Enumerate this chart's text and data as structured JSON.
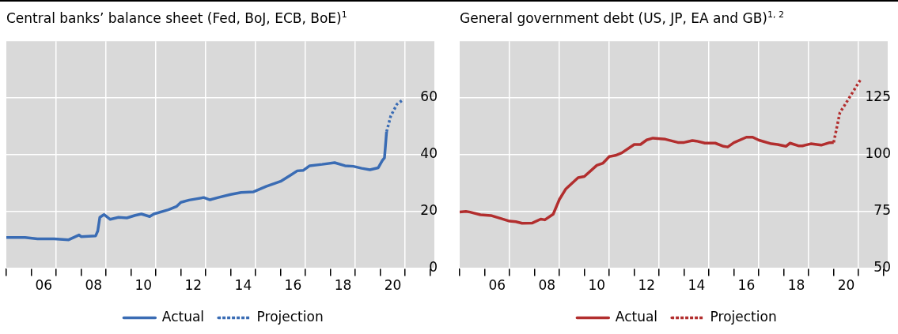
{
  "chart_data": [
    {
      "type": "line",
      "title": "Central banks’ balance sheet (Fed, BoJ, ECB, BoE)$^{1}$",
      "series": [
        {
          "name": "Actual",
          "color": "#3a6cb4",
          "line_style": "solid",
          "x": [
            "2005-01",
            "2005-10",
            "2006-04",
            "2006-12",
            "2007-07",
            "2007-12",
            "2008-01",
            "2008-08",
            "2008-09",
            "2008-10",
            "2008-12",
            "2009-03",
            "2009-07",
            "2009-11",
            "2010-03",
            "2010-06",
            "2010-10",
            "2010-12",
            "2011-07",
            "2011-11",
            "2012-01",
            "2012-05",
            "2012-12",
            "2013-03",
            "2013-07",
            "2014-01",
            "2014-06",
            "2014-12",
            "2015-06",
            "2016-01",
            "2016-06",
            "2016-09",
            "2016-12",
            "2017-03",
            "2017-09",
            "2018-03",
            "2018-08",
            "2018-12",
            "2019-04",
            "2019-08",
            "2019-12",
            "2020-02",
            "2020-03",
            "2020-04"
          ],
          "values": [
            10.8,
            10.8,
            10.3,
            10.3,
            10.0,
            11.7,
            11.1,
            11.4,
            13.1,
            17.9,
            18.9,
            17.2,
            17.9,
            17.7,
            18.6,
            19.1,
            18.2,
            19.1,
            20.6,
            21.8,
            23.2,
            24.0,
            24.9,
            24.1,
            24.9,
            26.0,
            26.7,
            26.9,
            28.8,
            30.6,
            32.9,
            34.3,
            34.5,
            36.1,
            36.6,
            37.2,
            36.1,
            35.9,
            35.2,
            34.7,
            35.4,
            38.0,
            38.9,
            48.1
          ]
        },
        {
          "name": "Projection",
          "color": "#3a6cb4",
          "line_style": "dotted",
          "x": [
            "2020-04",
            "2020-06",
            "2020-09",
            "2020-12"
          ],
          "values": [
            48.1,
            53.6,
            57.8,
            59.4
          ]
        }
      ],
      "xlim": [
        "2005-01",
        "2022-03"
      ],
      "xticks": [
        {
          "value": "2005-01-01",
          "label": null
        },
        {
          "value": "2006-01-01",
          "label": null
        },
        {
          "value": "2006-07-01",
          "label": "06"
        },
        {
          "value": "2007-01-01",
          "label": null
        },
        {
          "value": "2008-01-01",
          "label": null
        },
        {
          "value": "2008-07-01",
          "label": "08"
        },
        {
          "value": "2009-01-01",
          "label": null
        },
        {
          "value": "2010-01-01",
          "label": null
        },
        {
          "value": "2010-07-01",
          "label": "10"
        },
        {
          "value": "2011-01-01",
          "label": null
        },
        {
          "value": "2012-01-01",
          "label": null
        },
        {
          "value": "2012-07-01",
          "label": "12"
        },
        {
          "value": "2013-01-01",
          "label": null
        },
        {
          "value": "2014-01-01",
          "label": null
        },
        {
          "value": "2014-07-01",
          "label": "14"
        },
        {
          "value": "2015-01-01",
          "label": null
        },
        {
          "value": "2016-01-01",
          "label": null
        },
        {
          "value": "2016-07-01",
          "label": "16"
        },
        {
          "value": "2017-01-01",
          "label": null
        },
        {
          "value": "2018-01-01",
          "label": null
        },
        {
          "value": "2018-07-01",
          "label": "18"
        },
        {
          "value": "2019-01-01",
          "label": null
        },
        {
          "value": "2020-01-01",
          "label": null
        },
        {
          "value": "2020-07-01",
          "label": "20"
        },
        {
          "value": "2021-01-01",
          "label": null
        },
        {
          "value": "2022-01-01",
          "label": null
        }
      ],
      "ylim": [
        0,
        80
      ],
      "yticks": [
        0,
        20,
        40,
        60
      ],
      "grid": true,
      "legend": "bottom",
      "marker": "none"
    },
    {
      "type": "line",
      "title": "General government debt (US, JP, EA and GB)$^{1, 2}$",
      "series": [
        {
          "name": "Actual",
          "color": "#b22e2e",
          "line_style": "solid",
          "x": [
            "2005-01",
            "2005-04",
            "2005-06",
            "2005-11",
            "2006-04",
            "2006-09",
            "2007-01",
            "2007-04",
            "2007-07",
            "2007-12",
            "2008-04",
            "2008-06",
            "2008-10",
            "2009-01",
            "2009-04",
            "2009-10",
            "2010-01",
            "2010-07",
            "2010-10",
            "2011-01",
            "2011-04",
            "2011-07",
            "2012-01",
            "2012-04",
            "2012-07",
            "2012-10",
            "2013-04",
            "2013-10",
            "2014-01",
            "2014-05",
            "2014-07",
            "2014-11",
            "2015-04",
            "2015-08",
            "2015-10",
            "2016-01",
            "2016-07",
            "2016-10",
            "2017-01",
            "2017-07",
            "2017-10",
            "2018-02",
            "2018-04",
            "2018-08",
            "2018-10",
            "2019-02",
            "2019-07",
            "2019-11",
            "2020-01"
          ],
          "values": [
            74.7,
            75.0,
            74.7,
            73.5,
            73.2,
            71.8,
            70.7,
            70.5,
            69.8,
            69.9,
            71.6,
            71.3,
            73.8,
            80.3,
            84.8,
            89.9,
            90.4,
            95.3,
            96.3,
            99.2,
            99.7,
            100.8,
            104.5,
            104.5,
            106.5,
            107.3,
            106.8,
            105.4,
            105.4,
            106.2,
            106.0,
            105.1,
            105.1,
            103.7,
            103.4,
            105.3,
            107.7,
            107.7,
            106.4,
            104.8,
            104.5,
            103.7,
            105.1,
            103.9,
            103.9,
            104.8,
            104.2,
            105.3,
            105.4
          ]
        },
        {
          "name": "Projection",
          "color": "#b22e2e",
          "line_style": "dotted",
          "x": [
            "2020-01",
            "2020-04",
            "2020-06",
            "2021-02"
          ],
          "values": [
            105.4,
            118.6,
            121.4,
            133.2
          ]
        }
      ],
      "xlim": [
        "2005-01",
        "2022-03"
      ],
      "xticks": [
        {
          "value": "2005-01-01",
          "label": null
        },
        {
          "value": "2006-01-01",
          "label": null
        },
        {
          "value": "2006-07-01",
          "label": "06"
        },
        {
          "value": "2007-01-01",
          "label": null
        },
        {
          "value": "2008-01-01",
          "label": null
        },
        {
          "value": "2008-07-01",
          "label": "08"
        },
        {
          "value": "2009-01-01",
          "label": null
        },
        {
          "value": "2010-01-01",
          "label": null
        },
        {
          "value": "2010-07-01",
          "label": "10"
        },
        {
          "value": "2011-01-01",
          "label": null
        },
        {
          "value": "2012-01-01",
          "label": null
        },
        {
          "value": "2012-07-01",
          "label": "12"
        },
        {
          "value": "2013-01-01",
          "label": null
        },
        {
          "value": "2014-01-01",
          "label": null
        },
        {
          "value": "2014-07-01",
          "label": "14"
        },
        {
          "value": "2015-01-01",
          "label": null
        },
        {
          "value": "2016-01-01",
          "label": null
        },
        {
          "value": "2016-07-01",
          "label": "16"
        },
        {
          "value": "2017-01-01",
          "label": null
        },
        {
          "value": "2018-01-01",
          "label": null
        },
        {
          "value": "2018-07-01",
          "label": "18"
        },
        {
          "value": "2019-01-01",
          "label": null
        },
        {
          "value": "2020-01-01",
          "label": null
        },
        {
          "value": "2020-07-01",
          "label": "20"
        },
        {
          "value": "2021-01-01",
          "label": null
        },
        {
          "value": "2022-01-01",
          "label": null
        }
      ],
      "ylim": [
        50,
        150
      ],
      "yticks": [
        50,
        75,
        100,
        125
      ],
      "grid": true,
      "legend": "bottom",
      "marker": "none"
    }
  ]
}
